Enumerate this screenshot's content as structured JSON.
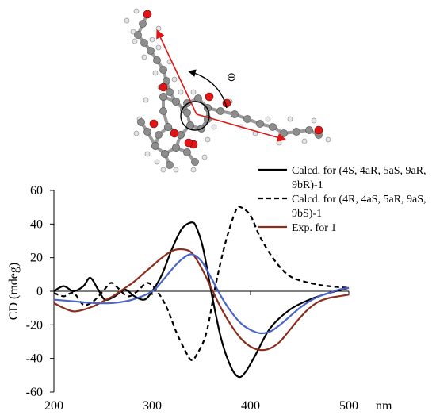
{
  "chart_data": {
    "type": "line",
    "title": "",
    "xlabel": "nm",
    "ylabel": "CD (mdeg)",
    "xlim": [
      200,
      500
    ],
    "ylim": [
      -60,
      60
    ],
    "x_ticks": [
      200,
      300,
      400,
      500
    ],
    "y_ticks": [
      -60,
      -40,
      -20,
      0,
      20,
      40,
      60
    ],
    "grid": false,
    "legend_position": "top-right",
    "series": [
      {
        "name": "Calcd. for (4S, 4aR, 5aS, 9aR, 9bR)-1",
        "color": "#000000",
        "dash": "solid",
        "x": [
          200,
          210,
          220,
          230,
          237,
          245,
          252,
          262,
          272,
          282,
          292,
          300,
          310,
          320,
          330,
          340,
          345,
          352,
          360,
          370,
          380,
          388,
          395,
          405,
          420,
          440,
          460,
          480,
          500
        ],
        "y": [
          0,
          3,
          0,
          3,
          8,
          1,
          -5,
          -3,
          1,
          -3,
          -5,
          0,
          10,
          25,
          37,
          41,
          38,
          25,
          0,
          -28,
          -45,
          -51,
          -48,
          -38,
          -22,
          -11,
          -5,
          -1,
          2
        ]
      },
      {
        "name": "Calcd. for (4R, 4aS, 5aR, 9aS, 9bS)-1",
        "color": "#000000",
        "dash": "dashed",
        "x": [
          200,
          210,
          220,
          230,
          240,
          250,
          258,
          265,
          275,
          285,
          295,
          305,
          315,
          325,
          335,
          340,
          345,
          355,
          365,
          375,
          385,
          390,
          400,
          410,
          425,
          440,
          460,
          480,
          500
        ],
        "y": [
          -1,
          -3,
          -1,
          -8,
          -6,
          0,
          5,
          2,
          -3,
          0,
          5,
          0,
          -10,
          -25,
          -37,
          -41,
          -38,
          -25,
          5,
          30,
          48,
          50,
          45,
          32,
          18,
          9,
          5,
          3,
          2
        ]
      },
      {
        "name": "Exp. for 1",
        "color": "#8B2D1C",
        "dash": "solid",
        "x": [
          200,
          210,
          220,
          230,
          240,
          250,
          260,
          270,
          280,
          290,
          300,
          310,
          320,
          330,
          340,
          350,
          360,
          370,
          380,
          390,
          400,
          410,
          420,
          430,
          440,
          450,
          460,
          470,
          480,
          490,
          500
        ],
        "y": [
          -7,
          -10,
          -12,
          -11,
          -9,
          -6,
          -3,
          1,
          5,
          10,
          15,
          20,
          24,
          25,
          23,
          14,
          2,
          -10,
          -20,
          -28,
          -33,
          -35,
          -34,
          -30,
          -23,
          -16,
          -10,
          -6,
          -4,
          -3,
          -2
        ]
      },
      {
        "name": "",
        "color": "#4A64C8",
        "dash": "solid",
        "x": [
          200,
          220,
          240,
          260,
          280,
          300,
          310,
          320,
          330,
          340,
          350,
          360,
          370,
          380,
          390,
          400,
          410,
          420,
          430,
          440,
          450,
          460,
          470,
          480,
          490,
          500
        ],
        "y": [
          -5,
          -6,
          -7,
          -7,
          -5,
          0,
          6,
          13,
          19,
          22,
          18,
          8,
          -3,
          -12,
          -19,
          -23,
          -25,
          -24,
          -20,
          -15,
          -10,
          -6,
          -3,
          -1,
          1,
          2
        ]
      }
    ]
  },
  "inset": {
    "charge_symbol": "⊖"
  }
}
